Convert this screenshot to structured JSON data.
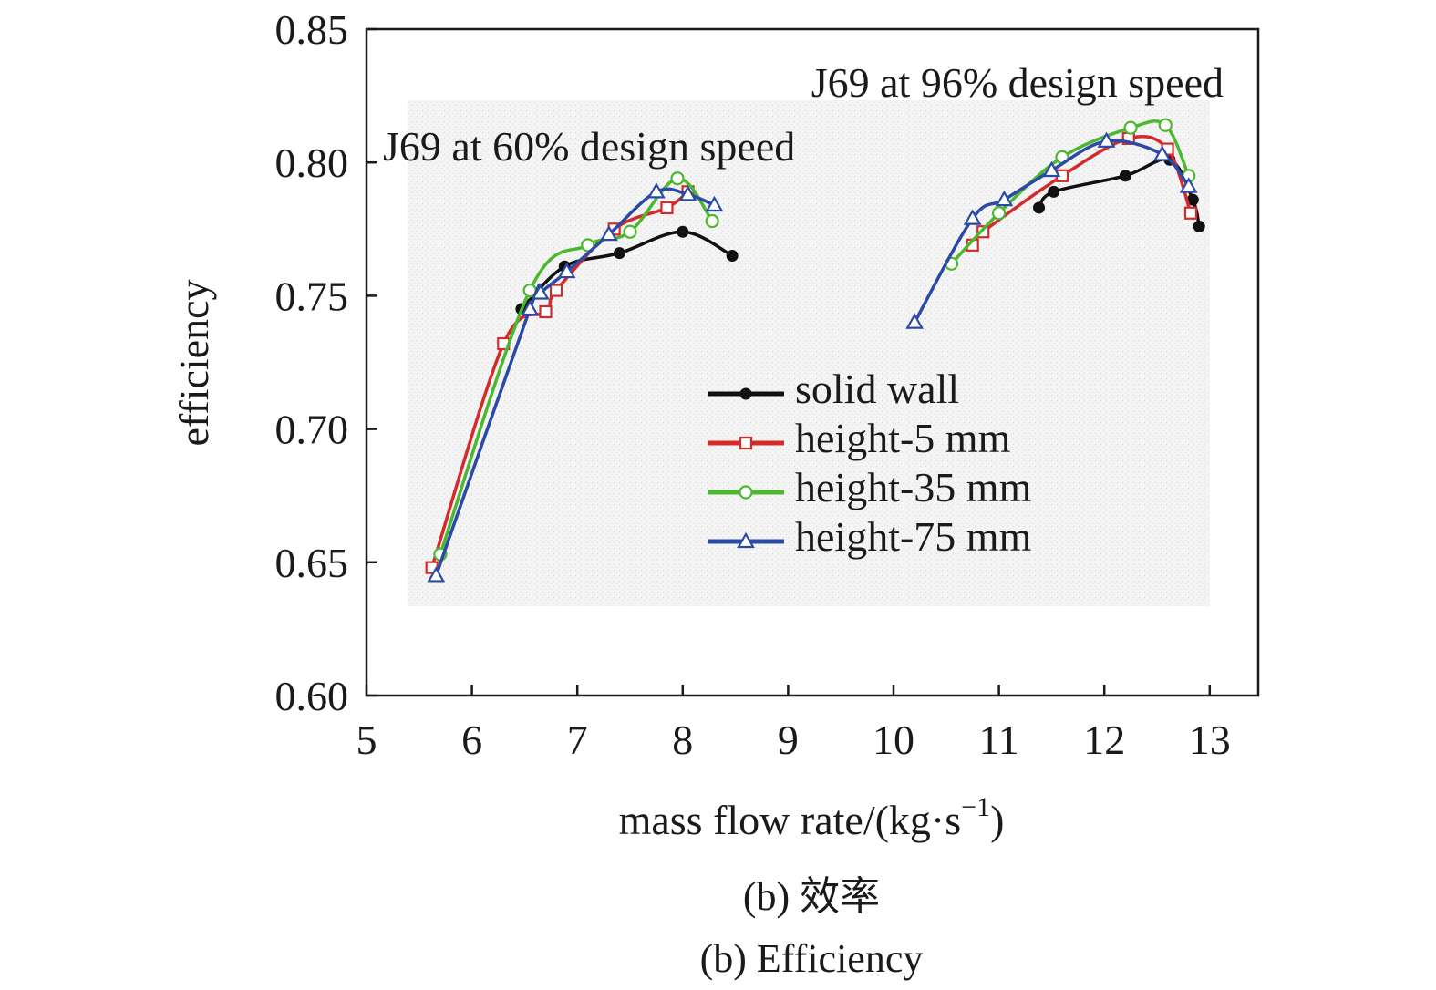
{
  "chart_data": {
    "type": "line",
    "xlabel": "mass flow rate/(kg·s",
    "xlabel_sup": "−1",
    "xlabel_end": ")",
    "ylabel": "efficiency",
    "xlim": [
      5,
      13.5
    ],
    "ylim": [
      0.6,
      0.85
    ],
    "x_ticks": [
      5,
      6,
      7,
      8,
      9,
      10,
      11,
      12,
      13
    ],
    "x_tick_labels": [
      "5",
      "6",
      "7",
      "8",
      "9",
      "10",
      "11",
      "12",
      "13"
    ],
    "y_ticks": [
      0.6,
      0.65,
      0.7,
      0.75,
      0.8,
      0.85
    ],
    "y_tick_labels": [
      "0.60",
      "0.65",
      "0.70",
      "0.75",
      "0.80",
      "0.85"
    ],
    "grid": false,
    "annotations": [
      {
        "text": "J69 at 96% design speed"
      },
      {
        "text": "J69 at 60% design speed"
      }
    ],
    "legend_placement": "center-right",
    "series": [
      {
        "name": "solid wall",
        "color": "#111111",
        "marker": "filled-circle",
        "groups": [
          [
            [
              6.47,
              0.745
            ],
            [
              6.88,
              0.761
            ],
            [
              7.4,
              0.766
            ],
            [
              8.0,
              0.774
            ],
            [
              8.47,
              0.765
            ]
          ],
          [
            [
              11.38,
              0.783
            ],
            [
              11.52,
              0.789
            ],
            [
              12.2,
              0.795
            ],
            [
              12.62,
              0.801
            ],
            [
              12.84,
              0.786
            ],
            [
              12.9,
              0.776
            ]
          ]
        ]
      },
      {
        "name": "height-5 mm",
        "color": "#d42a2a",
        "marker": "open-square",
        "groups": [
          [
            [
              5.62,
              0.648
            ],
            [
              6.3,
              0.732
            ],
            [
              6.7,
              0.744
            ],
            [
              6.8,
              0.752
            ],
            [
              7.35,
              0.775
            ],
            [
              7.85,
              0.783
            ],
            [
              8.05,
              0.789
            ]
          ],
          [
            [
              10.75,
              0.769
            ],
            [
              10.85,
              0.774
            ],
            [
              11.6,
              0.795
            ],
            [
              12.23,
              0.809
            ],
            [
              12.6,
              0.805
            ],
            [
              12.82,
              0.781
            ]
          ]
        ]
      },
      {
        "name": "height-35 mm",
        "color": "#4cb82f",
        "marker": "open-circle",
        "groups": [
          [
            [
              5.7,
              0.653
            ],
            [
              6.55,
              0.752
            ],
            [
              7.1,
              0.769
            ],
            [
              7.5,
              0.774
            ],
            [
              7.95,
              0.794
            ],
            [
              8.28,
              0.778
            ]
          ],
          [
            [
              10.55,
              0.762
            ],
            [
              11.0,
              0.781
            ],
            [
              11.6,
              0.802
            ],
            [
              12.25,
              0.813
            ],
            [
              12.58,
              0.814
            ],
            [
              12.8,
              0.795
            ]
          ]
        ]
      },
      {
        "name": "height-75 mm",
        "color": "#2b4aa6",
        "marker": "open-triangle",
        "groups": [
          [
            [
              5.66,
              0.645
            ],
            [
              6.55,
              0.745
            ],
            [
              6.65,
              0.751
            ],
            [
              6.9,
              0.759
            ],
            [
              7.3,
              0.773
            ],
            [
              7.75,
              0.789
            ],
            [
              8.05,
              0.788
            ],
            [
              8.3,
              0.784
            ]
          ],
          [
            [
              10.2,
              0.74
            ],
            [
              10.75,
              0.779
            ],
            [
              11.05,
              0.786
            ],
            [
              11.5,
              0.797
            ],
            [
              12.02,
              0.808
            ],
            [
              12.55,
              0.803
            ],
            [
              12.8,
              0.791
            ]
          ]
        ]
      }
    ]
  },
  "caption": {
    "line1": "(b) 效率",
    "line2": "(b) Efficiency"
  }
}
